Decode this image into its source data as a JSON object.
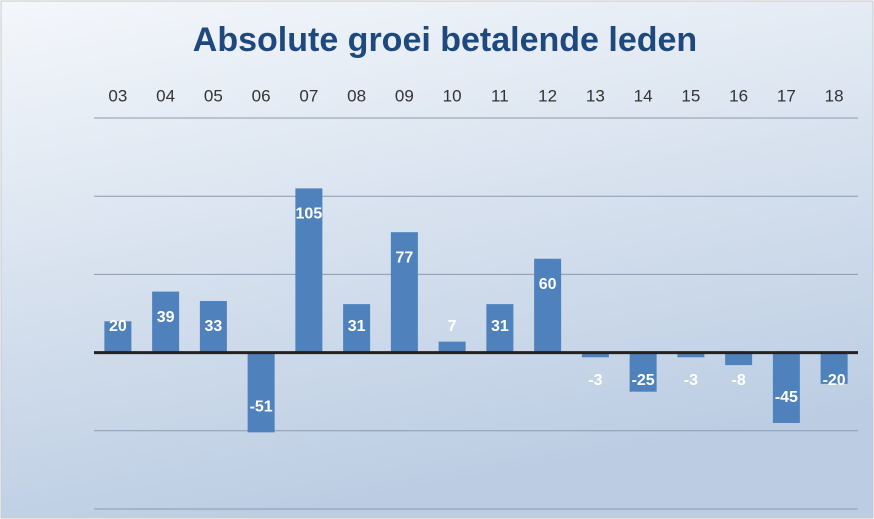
{
  "chart_data": {
    "type": "bar",
    "title": "Absolute groei betalende leden",
    "categories": [
      "03",
      "04",
      "05",
      "06",
      "07",
      "08",
      "09",
      "10",
      "11",
      "12",
      "13",
      "14",
      "15",
      "16",
      "17",
      "18"
    ],
    "values": [
      20,
      39,
      33,
      -51,
      105,
      31,
      77,
      7,
      31,
      60,
      -3,
      -25,
      -3,
      -8,
      -45,
      -20
    ],
    "color": "#4f81bd",
    "ylim": [
      -100,
      150
    ],
    "yticks": [
      -100,
      -50,
      0,
      50,
      100,
      150
    ],
    "grid": true
  }
}
